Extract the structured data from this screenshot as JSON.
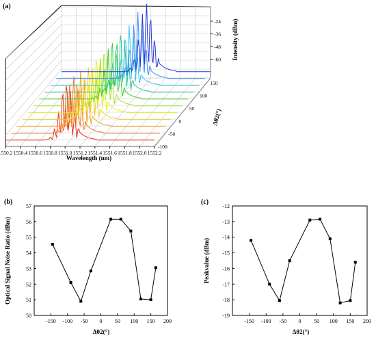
{
  "chart_data": [
    {
      "panel": "(a)",
      "type": "line",
      "xlabel": "Wavelength (nm)",
      "ylabel": "Intensity (dBm)",
      "zlabel": "Δθ2(°)",
      "x_ticks": [
        "1550.2",
        "1550.4",
        "1550.6",
        "1550.8",
        "1551.0",
        "1551.2",
        "1551.4",
        "1551.6",
        "1551.8",
        "1552.0",
        "1552.2"
      ],
      "y_ticks": [
        "-24",
        "-36",
        "-48",
        "-60"
      ],
      "z_ticks": [
        "150",
        "100",
        "50",
        "0",
        "-50",
        "-100"
      ],
      "xlim": [
        1550.2,
        1552.2
      ],
      "ylim": [
        -70,
        -20
      ],
      "series": [
        {
          "dtheta": -150,
          "color": "#e8301c",
          "peak": -28,
          "center": 1551.02
        },
        {
          "dtheta": -120,
          "color": "#f07318",
          "peak": -29,
          "center": 1551.04
        },
        {
          "dtheta": -90,
          "color": "#f2a21c",
          "peak": -30,
          "center": 1551.06
        },
        {
          "dtheta": -60,
          "color": "#f2cf1c",
          "peak": -31,
          "center": 1551.09
        },
        {
          "dtheta": -30,
          "color": "#e6ef1c",
          "peak": -29,
          "center": 1551.12
        },
        {
          "dtheta": 0,
          "color": "#a8e820",
          "peak": -28,
          "center": 1551.15
        },
        {
          "dtheta": 30,
          "color": "#3ccf2c",
          "peak": -27,
          "center": 1551.18
        },
        {
          "dtheta": 60,
          "color": "#28c890",
          "peak": -26,
          "center": 1551.22
        },
        {
          "dtheta": 90,
          "color": "#30c8e8",
          "peak": -27,
          "center": 1551.26
        },
        {
          "dtheta": 120,
          "color": "#3c8cf0",
          "peak": -24,
          "center": 1551.3
        },
        {
          "dtheta": 150,
          "color": "#2638d8",
          "peak": -22,
          "center": 1551.34
        }
      ]
    },
    {
      "panel": "(b)",
      "type": "line",
      "xlabel": "Δθ2(°)",
      "ylabel": "Optical Signal Noise Ratio (dBm)",
      "xlim": [
        -200,
        200
      ],
      "ylim": [
        50,
        57
      ],
      "x_ticks": [
        "-150",
        "-100",
        "-50",
        "0",
        "50",
        "100",
        "150",
        "200"
      ],
      "y_ticks": [
        "50",
        "51",
        "52",
        "53",
        "54",
        "55",
        "56",
        "57"
      ],
      "series": [
        {
          "x": [
            -145,
            -90,
            -60,
            -30,
            30,
            60,
            90,
            120,
            150,
            165
          ],
          "y": [
            54.55,
            52.1,
            50.9,
            52.85,
            56.15,
            56.15,
            55.4,
            51.05,
            51.0,
            53.05
          ]
        }
      ]
    },
    {
      "panel": "(c)",
      "type": "line",
      "xlabel": "Δθ2(°)",
      "ylabel": "Peakvalue (dBm)",
      "xlim": [
        -200,
        200
      ],
      "ylim": [
        -19,
        -12
      ],
      "x_ticks": [
        "-150",
        "-100",
        "-50",
        "0",
        "50",
        "100",
        "150",
        "200"
      ],
      "y_ticks": [
        "-12",
        "-13",
        "-14",
        "-15",
        "-16",
        "-17",
        "-18",
        "-19"
      ],
      "series": [
        {
          "x": [
            -145,
            -90,
            -60,
            -30,
            30,
            60,
            90,
            120,
            150,
            165
          ],
          "y": [
            -14.2,
            -17.0,
            -18.05,
            -15.5,
            -12.9,
            -12.85,
            -14.1,
            -18.2,
            -18.05,
            -15.6
          ]
        }
      ]
    }
  ]
}
